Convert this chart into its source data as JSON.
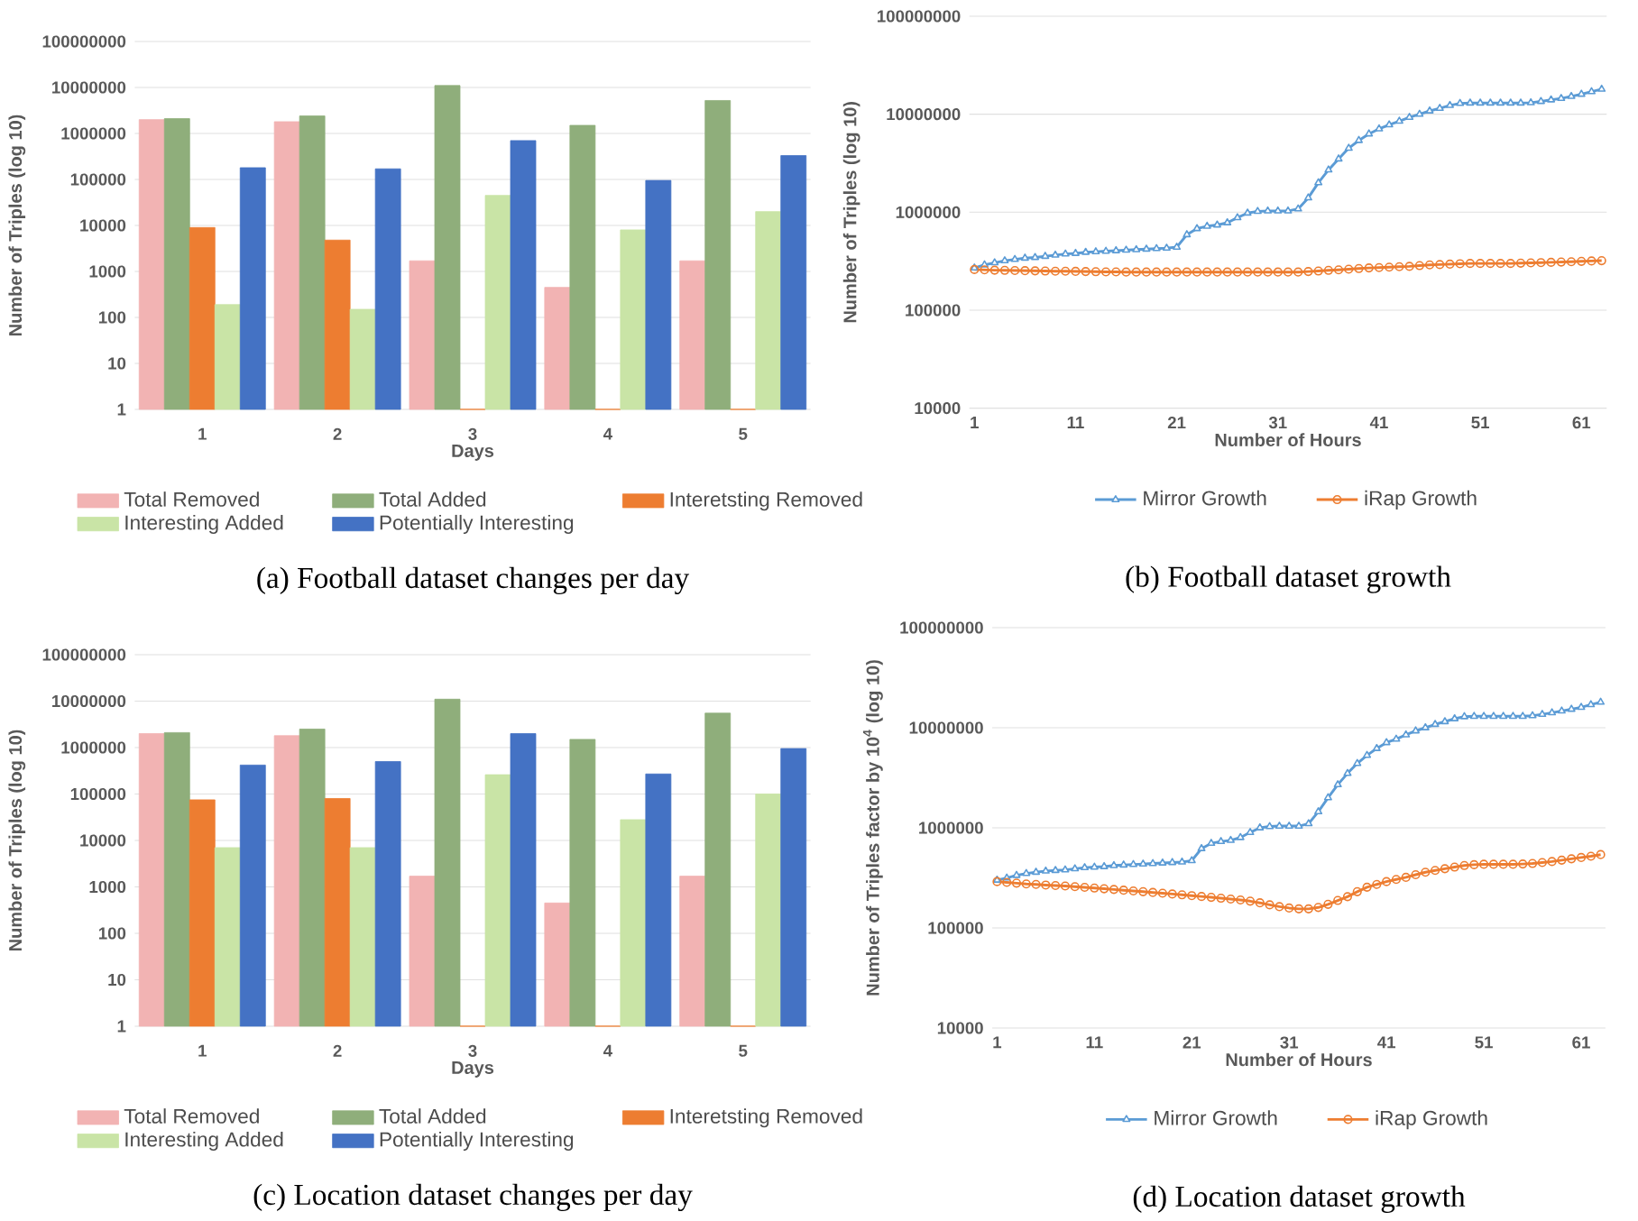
{
  "chart_data": [
    {
      "type": "bar",
      "title": "(a) Football dataset changes per day",
      "xlabel": "Days",
      "ylabel": "Number of Triples (log 10)",
      "categories": [
        "1",
        "2",
        "3",
        "4",
        "5"
      ],
      "log": "y",
      "grid": "y",
      "legend": "bottom",
      "ylim": [
        1,
        100000000
      ],
      "yticks": [
        1,
        10,
        100,
        1000,
        10000,
        100000,
        1000000,
        10000000,
        100000000
      ],
      "series": [
        {
          "name": "Total Removed",
          "color": "#f2b3b3",
          "values": [
            2000000,
            1800000,
            1700,
            450,
            1700
          ]
        },
        {
          "name": "Total Added",
          "color": "#8fae7b",
          "values": [
            2100000,
            2400000,
            11000000,
            1500000,
            5200000
          ]
        },
        {
          "name": "Interetsting Removed",
          "color": "#ed7d31",
          "values": [
            9000,
            4800,
            1,
            1,
            1
          ]
        },
        {
          "name": "Interesting Added",
          "color": "#c9e4a6",
          "values": [
            190,
            150,
            45000,
            8000,
            20000
          ]
        },
        {
          "name": "Potentially Interesting",
          "color": "#4472c4",
          "values": [
            180000,
            170000,
            700000,
            95000,
            330000
          ]
        }
      ]
    },
    {
      "type": "line",
      "title": "(b) Football dataset growth",
      "xlabel": "Number of Hours",
      "ylabel": "Number of Triples (log 10)",
      "log": "y",
      "grid": "y",
      "legend": "bottom",
      "xlim": [
        0.5,
        63.5
      ],
      "xticks": [
        1,
        11,
        21,
        31,
        41,
        51,
        61
      ],
      "ylim": [
        10000,
        100000000
      ],
      "yticks": [
        10000,
        100000,
        1000000,
        10000000,
        100000000
      ],
      "x": [
        1,
        2,
        3,
        4,
        5,
        6,
        7,
        8,
        9,
        10,
        11,
        12,
        13,
        14,
        15,
        16,
        17,
        18,
        19,
        20,
        21,
        22,
        23,
        24,
        25,
        26,
        27,
        28,
        29,
        30,
        31,
        32,
        33,
        34,
        35,
        36,
        37,
        38,
        39,
        40,
        41,
        42,
        43,
        44,
        45,
        46,
        47,
        48,
        49,
        50,
        51,
        52,
        53,
        54,
        55,
        56,
        57,
        58,
        59,
        60,
        61,
        62,
        63
      ],
      "series": [
        {
          "name": "Mirror Growth",
          "color": "#5b9bd5",
          "marker": "triangle",
          "values": [
            270000,
            290000,
            305000,
            320000,
            330000,
            340000,
            345000,
            355000,
            365000,
            375000,
            380000,
            390000,
            395000,
            400000,
            405000,
            410000,
            415000,
            420000,
            425000,
            430000,
            440000,
            590000,
            680000,
            720000,
            740000,
            780000,
            880000,
            980000,
            1020000,
            1030000,
            1030000,
            1030000,
            1080000,
            1400000,
            2000000,
            2700000,
            3500000,
            4500000,
            5400000,
            6300000,
            7100000,
            7800000,
            8500000,
            9300000,
            10000000,
            10800000,
            11500000,
            12300000,
            12900000,
            13000000,
            13000000,
            13000000,
            13000000,
            13000000,
            13000000,
            13100000,
            13500000,
            14000000,
            14500000,
            15200000,
            16000000,
            17000000,
            18000000
          ]
        },
        {
          "name": "iRap Growth",
          "color": "#ed7d31",
          "marker": "circle",
          "values": [
            260000,
            258000,
            256000,
            255000,
            254000,
            253000,
            252000,
            251000,
            250000,
            250000,
            249000,
            248000,
            247000,
            246000,
            246000,
            245000,
            245000,
            245000,
            245000,
            245000,
            245000,
            245000,
            245000,
            245000,
            245000,
            245000,
            245000,
            245000,
            245000,
            245000,
            245000,
            245000,
            245000,
            248000,
            251000,
            255000,
            258000,
            262000,
            266000,
            270000,
            272000,
            275000,
            278000,
            280000,
            285000,
            290000,
            292000,
            295000,
            298000,
            300000,
            300000,
            300000,
            300000,
            300000,
            302000,
            304000,
            306000,
            308000,
            310000,
            312000,
            315000,
            318000,
            320000
          ]
        }
      ]
    },
    {
      "type": "bar",
      "title": "(c) Location dataset changes per day",
      "xlabel": "Days",
      "ylabel": "Number of Triples (log 10)",
      "categories": [
        "1",
        "2",
        "3",
        "4",
        "5"
      ],
      "log": "y",
      "grid": "y",
      "legend": "bottom",
      "ylim": [
        1,
        100000000
      ],
      "yticks": [
        1,
        10,
        100,
        1000,
        10000,
        100000,
        1000000,
        10000000,
        100000000
      ],
      "series": [
        {
          "name": "Total Removed",
          "color": "#f2b3b3",
          "values": [
            2000000,
            1800000,
            1700,
            450,
            1700
          ]
        },
        {
          "name": "Total Added",
          "color": "#8fae7b",
          "values": [
            2100000,
            2500000,
            11000000,
            1500000,
            5500000
          ]
        },
        {
          "name": "Interetsting Removed",
          "color": "#ed7d31",
          "values": [
            75000,
            80000,
            1,
            1,
            1
          ]
        },
        {
          "name": "Interesting Added",
          "color": "#c9e4a6",
          "values": [
            7000,
            7000,
            260000,
            28000,
            100000
          ]
        },
        {
          "name": "Potentially Interesting",
          "color": "#4472c4",
          "values": [
            420000,
            500000,
            2000000,
            270000,
            950000
          ]
        }
      ]
    },
    {
      "type": "line",
      "title": "(d) Location dataset growth",
      "xlabel": "Number of Hours",
      "ylabel": "Number of Triples factor by 10$^{4}$ (log 10)",
      "log": "y",
      "grid": "y",
      "legend": "bottom",
      "xlim": [
        0.5,
        63.5
      ],
      "xticks": [
        1,
        11,
        21,
        31,
        41,
        51,
        61
      ],
      "ylim": [
        10000,
        100000000
      ],
      "yticks": [
        10000,
        100000,
        1000000,
        10000000,
        100000000
      ],
      "x": [
        1,
        2,
        3,
        4,
        5,
        6,
        7,
        8,
        9,
        10,
        11,
        12,
        13,
        14,
        15,
        16,
        17,
        18,
        19,
        20,
        21,
        22,
        23,
        24,
        25,
        26,
        27,
        28,
        29,
        30,
        31,
        32,
        33,
        34,
        35,
        36,
        37,
        38,
        39,
        40,
        41,
        42,
        43,
        44,
        45,
        46,
        47,
        48,
        49,
        50,
        51,
        52,
        53,
        54,
        55,
        56,
        57,
        58,
        59,
        60,
        61,
        62,
        63
      ],
      "series": [
        {
          "name": "Mirror Growth",
          "color": "#5b9bd5",
          "marker": "triangle",
          "values": [
            300000,
            315000,
            335000,
            350000,
            360000,
            370000,
            375000,
            380000,
            390000,
            400000,
            405000,
            410000,
            420000,
            425000,
            430000,
            435000,
            440000,
            445000,
            450000,
            455000,
            470000,
            620000,
            700000,
            730000,
            750000,
            800000,
            900000,
            1000000,
            1030000,
            1040000,
            1040000,
            1040000,
            1100000,
            1450000,
            2000000,
            2700000,
            3500000,
            4400000,
            5300000,
            6200000,
            7100000,
            7700000,
            8500000,
            9300000,
            10000000,
            10800000,
            11500000,
            12300000,
            12900000,
            13000000,
            13000000,
            13000000,
            13000000,
            13000000,
            13000000,
            13200000,
            13600000,
            14100000,
            14700000,
            15300000,
            16000000,
            17000000,
            18000000
          ]
        },
        {
          "name": "iRap Growth",
          "color": "#ed7d31",
          "marker": "circle",
          "values": [
            290000,
            285000,
            280000,
            275000,
            272000,
            268000,
            265000,
            262000,
            258000,
            254000,
            250000,
            246000,
            242000,
            238000,
            234000,
            230000,
            226000,
            222000,
            218000,
            214000,
            210000,
            206000,
            202000,
            198000,
            194000,
            190000,
            185000,
            178000,
            170000,
            163000,
            158000,
            155000,
            155000,
            160000,
            172000,
            188000,
            205000,
            230000,
            255000,
            272000,
            290000,
            305000,
            320000,
            340000,
            360000,
            375000,
            390000,
            405000,
            420000,
            428000,
            432000,
            432000,
            432000,
            432000,
            435000,
            440000,
            450000,
            460000,
            475000,
            490000,
            505000,
            520000,
            540000
          ]
        }
      ]
    }
  ]
}
